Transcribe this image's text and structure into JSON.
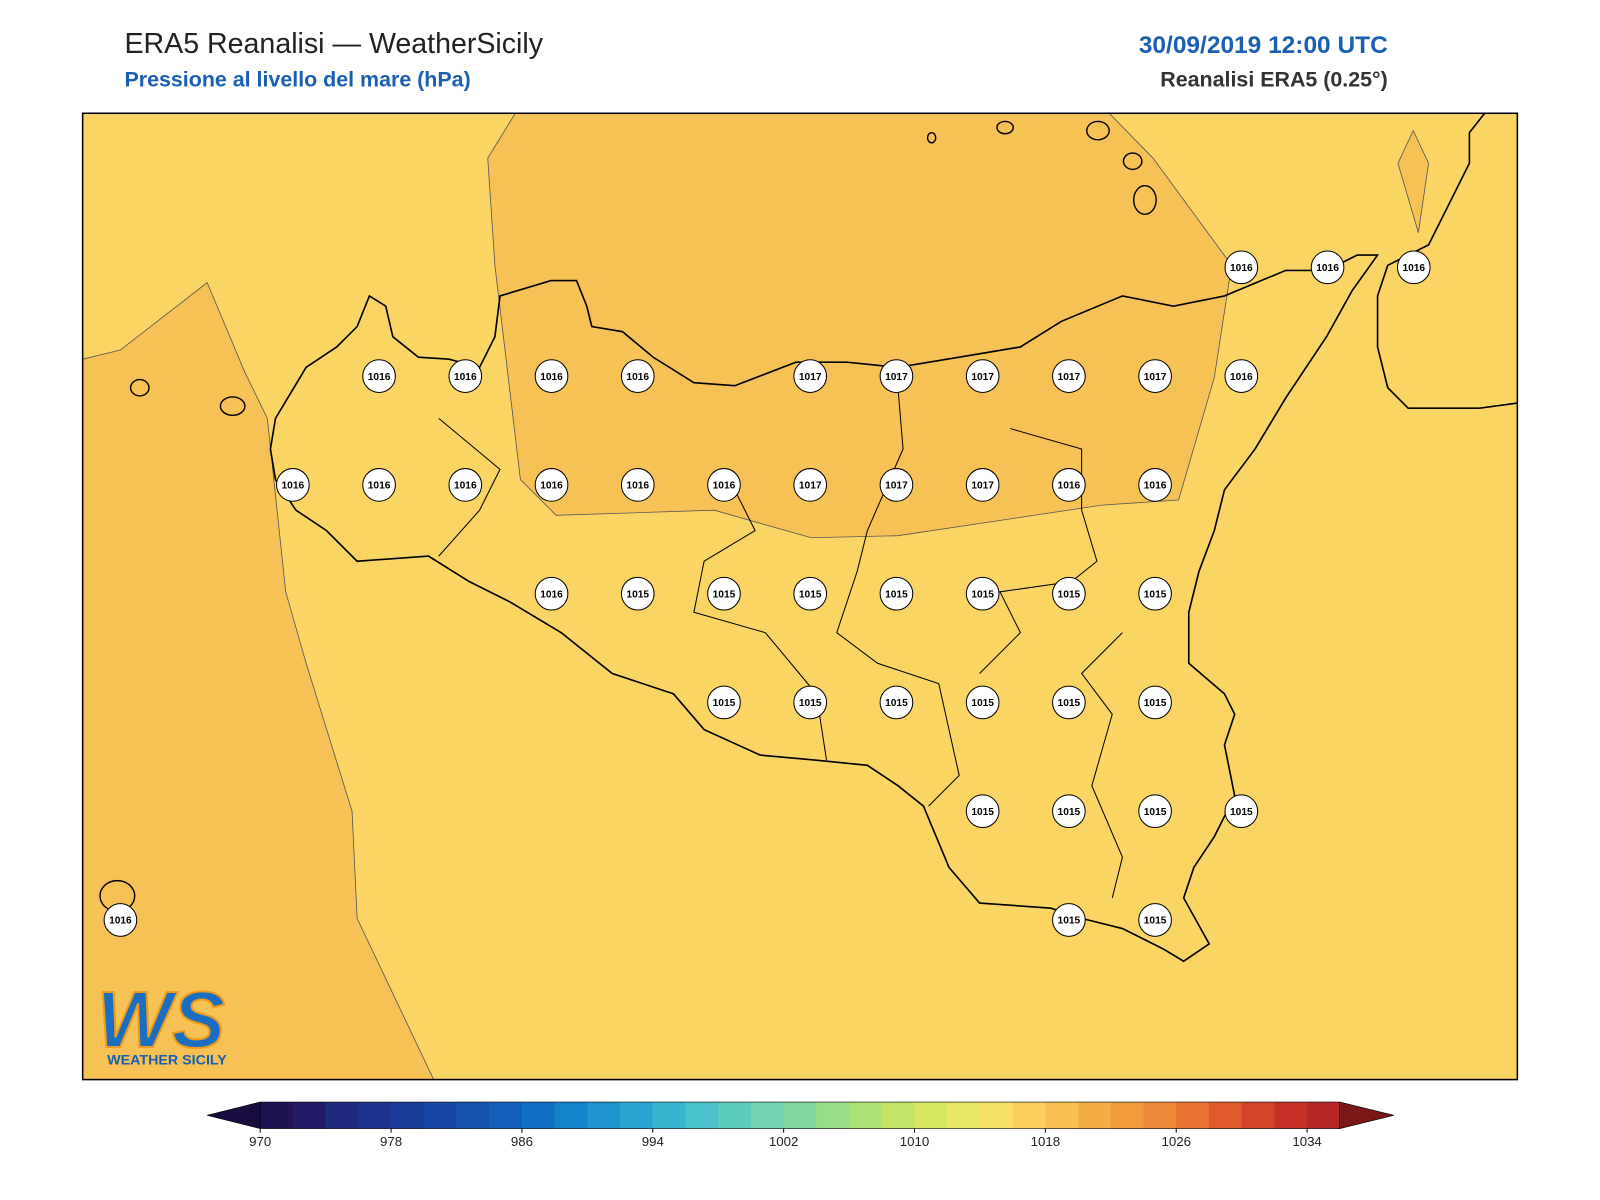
{
  "header": {
    "title": "ERA5 Reanalisi — WeatherSicily",
    "subtitle": "Pressione al livello del mare (hPa)",
    "datetime": "30/09/2019 12:00 UTC",
    "source": "Reanalisi ERA5 (0.25°)"
  },
  "map": {
    "stations": [
      [
        null,
        null,
        null,
        null,
        null,
        null,
        null,
        null,
        null,
        null,
        null,
        null,
        null,
        1016,
        1016,
        1016
      ],
      [
        null,
        null,
        null,
        1016,
        1016,
        1016,
        1016,
        null,
        1017,
        1017,
        1017,
        1017,
        1017,
        1016,
        null,
        null
      ],
      [
        null,
        null,
        1016,
        1016,
        1016,
        1016,
        1016,
        1016,
        1017,
        1017,
        1017,
        1016,
        1016,
        null,
        null,
        null
      ],
      [
        null,
        null,
        null,
        null,
        null,
        1016,
        1015,
        1015,
        1015,
        1015,
        1015,
        1015,
        1015,
        null,
        null,
        null
      ],
      [
        null,
        null,
        null,
        null,
        null,
        null,
        null,
        1015,
        1015,
        1015,
        1015,
        1015,
        1015,
        null,
        null,
        null
      ],
      [
        null,
        null,
        null,
        null,
        null,
        null,
        null,
        null,
        null,
        null,
        1015,
        1015,
        1015,
        1015,
        null,
        null
      ],
      [
        1016,
        null,
        null,
        null,
        null,
        null,
        null,
        null,
        null,
        null,
        null,
        1015,
        1015,
        null,
        null,
        null
      ]
    ]
  },
  "colorbar": {
    "min": 970,
    "step": 2,
    "colors": [
      "#1f1352",
      "#221a66",
      "#1e2a7e",
      "#1c3490",
      "#1b3c9a",
      "#1746a6",
      "#1552b0",
      "#1260bc",
      "#0f70c6",
      "#1582cc",
      "#1f93d0",
      "#2aa5d2",
      "#38b6d0",
      "#4ac2c9",
      "#5ccbc0",
      "#70d2b0",
      "#84d89e",
      "#98dc88",
      "#aee175",
      "#c4e466",
      "#d8e762",
      "#ebe666",
      "#f8df68",
      "#f9d05f",
      "#f7c051",
      "#f5ae47",
      "#f29b3e",
      "#ee8736",
      "#e8722f",
      "#df5b2b",
      "#d24329",
      "#c42f28",
      "#b52626"
    ],
    "under": "#180d3e",
    "over": "#7a1818",
    "ticks": [
      970,
      978,
      986,
      994,
      1002,
      1010,
      1018,
      1026,
      1034
    ]
  },
  "logo": {
    "mark": "WS",
    "text": "WEATHER SICILY"
  }
}
